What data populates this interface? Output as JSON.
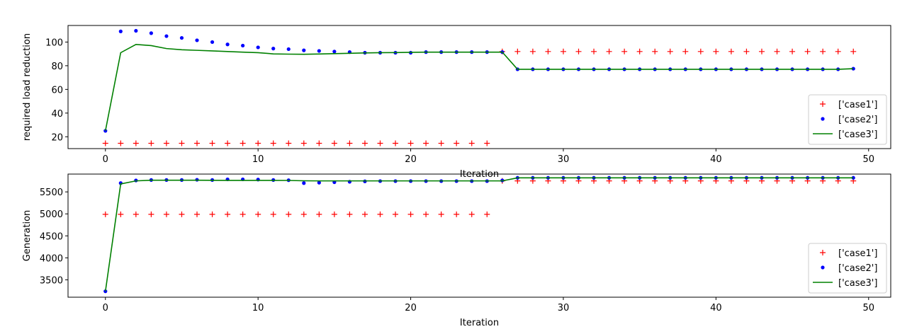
{
  "chart_data": [
    {
      "type": "line",
      "xlabel": "Iteration",
      "ylabel": "required load reduction",
      "xlim": [
        -2.45,
        51.45
      ],
      "ylim": [
        10,
        114
      ],
      "xticks": [
        0,
        10,
        20,
        30,
        40,
        50
      ],
      "yticks": [
        20,
        40,
        60,
        80,
        100
      ],
      "grid": false,
      "legend_position": "lower-right",
      "series": [
        {
          "name": "['case1']",
          "style": "plus",
          "color": "#ff0000",
          "x": [
            0,
            1,
            2,
            3,
            4,
            5,
            6,
            7,
            8,
            9,
            10,
            11,
            12,
            13,
            14,
            15,
            16,
            17,
            18,
            19,
            20,
            21,
            22,
            23,
            24,
            25,
            26,
            27,
            28,
            29,
            30,
            31,
            32,
            33,
            34,
            35,
            36,
            37,
            38,
            39,
            40,
            41,
            42,
            43,
            44,
            45,
            46,
            47,
            48,
            49
          ],
          "y": [
            14.5,
            14.5,
            14.5,
            14.5,
            14.5,
            14.5,
            14.5,
            14.5,
            14.5,
            14.5,
            14.5,
            14.5,
            14.5,
            14.5,
            14.5,
            14.5,
            14.5,
            14.5,
            14.5,
            14.5,
            14.5,
            14.5,
            14.5,
            14.5,
            14.5,
            14.5,
            92,
            92,
            92,
            92,
            92,
            92,
            92,
            92,
            92,
            92,
            92,
            92,
            92,
            92,
            92,
            92,
            92,
            92,
            92,
            92,
            92,
            92,
            92,
            92
          ]
        },
        {
          "name": "['case2']",
          "style": "dot",
          "color": "#0000ff",
          "x": [
            0,
            1,
            2,
            3,
            4,
            5,
            6,
            7,
            8,
            9,
            10,
            11,
            12,
            13,
            14,
            15,
            16,
            17,
            18,
            19,
            20,
            21,
            22,
            23,
            24,
            25,
            26,
            27,
            28,
            29,
            30,
            31,
            32,
            33,
            34,
            35,
            36,
            37,
            38,
            39,
            40,
            41,
            42,
            43,
            44,
            45,
            46,
            47,
            48,
            49
          ],
          "y": [
            25,
            109,
            109.5,
            107.5,
            105,
            103.5,
            101.5,
            100,
            98,
            97,
            95.5,
            94.5,
            94,
            93,
            92.5,
            92,
            91.5,
            91,
            91,
            91,
            91,
            91.5,
            91.5,
            91.5,
            91.5,
            91.5,
            91.5,
            77,
            77,
            77,
            77,
            77,
            77,
            77,
            77,
            77,
            77,
            77,
            77,
            77,
            77,
            77,
            77,
            77,
            77,
            77,
            77,
            77,
            77,
            77.5
          ]
        },
        {
          "name": "['case3']",
          "style": "line",
          "color": "#008000",
          "x": [
            0,
            1,
            2,
            3,
            4,
            5,
            6,
            7,
            8,
            9,
            10,
            11,
            12,
            13,
            14,
            15,
            16,
            17,
            18,
            19,
            20,
            21,
            22,
            23,
            24,
            25,
            26,
            27,
            28,
            29,
            30,
            31,
            32,
            33,
            34,
            35,
            36,
            37,
            38,
            39,
            40,
            41,
            42,
            43,
            44,
            45,
            46,
            47,
            48,
            49
          ],
          "y": [
            25,
            91,
            98,
            97,
            94.5,
            93.5,
            93,
            92.5,
            92,
            91.5,
            91,
            90,
            89.8,
            89.7,
            89.9,
            90.2,
            90.5,
            90.8,
            91,
            91.1,
            91.3,
            91.5,
            91.5,
            91.5,
            91.5,
            91.5,
            91.5,
            77,
            77,
            77,
            77,
            77,
            77,
            77,
            77,
            77,
            77,
            77,
            77,
            77,
            77,
            77,
            77,
            77,
            77,
            77,
            77,
            77,
            77,
            77.5
          ]
        }
      ]
    },
    {
      "type": "line",
      "xlabel": "Iteration",
      "ylabel": "Generation",
      "xlim": [
        -2.45,
        51.45
      ],
      "ylim": [
        3105,
        5905
      ],
      "xticks": [
        0,
        10,
        20,
        30,
        40,
        50
      ],
      "yticks": [
        3500,
        4000,
        4500,
        5000,
        5500
      ],
      "grid": false,
      "legend_position": "lower-right",
      "series": [
        {
          "name": "['case1']",
          "style": "plus",
          "color": "#ff0000",
          "x": [
            0,
            1,
            2,
            3,
            4,
            5,
            6,
            7,
            8,
            9,
            10,
            11,
            12,
            13,
            14,
            15,
            16,
            17,
            18,
            19,
            20,
            21,
            22,
            23,
            24,
            25,
            26,
            27,
            28,
            29,
            30,
            31,
            32,
            33,
            34,
            35,
            36,
            37,
            38,
            39,
            40,
            41,
            42,
            43,
            44,
            45,
            46,
            47,
            48,
            49
          ],
          "y": [
            4990,
            4990,
            4990,
            4990,
            4990,
            4990,
            4990,
            4990,
            4990,
            4990,
            4990,
            4990,
            4990,
            4990,
            4990,
            4990,
            4990,
            4990,
            4990,
            4990,
            4990,
            4990,
            4990,
            4990,
            4990,
            4990,
            5750,
            5750,
            5750,
            5750,
            5750,
            5750,
            5750,
            5750,
            5750,
            5750,
            5750,
            5750,
            5750,
            5750,
            5750,
            5750,
            5750,
            5750,
            5750,
            5750,
            5750,
            5750,
            5750,
            5750
          ]
        },
        {
          "name": "['case2']",
          "style": "dot",
          "color": "#0000ff",
          "x": [
            0,
            1,
            2,
            3,
            4,
            5,
            6,
            7,
            8,
            9,
            10,
            11,
            12,
            13,
            14,
            15,
            16,
            17,
            18,
            19,
            20,
            21,
            22,
            23,
            24,
            25,
            26,
            27,
            28,
            29,
            30,
            31,
            32,
            33,
            34,
            35,
            36,
            37,
            38,
            39,
            40,
            41,
            42,
            43,
            44,
            45,
            46,
            47,
            48,
            49
          ],
          "y": [
            3240,
            5700,
            5760,
            5770,
            5770,
            5770,
            5775,
            5770,
            5785,
            5785,
            5780,
            5770,
            5765,
            5700,
            5710,
            5720,
            5730,
            5740,
            5745,
            5745,
            5745,
            5745,
            5745,
            5745,
            5745,
            5745,
            5760,
            5820,
            5820,
            5820,
            5820,
            5820,
            5820,
            5820,
            5820,
            5820,
            5820,
            5820,
            5820,
            5820,
            5820,
            5820,
            5820,
            5820,
            5820,
            5820,
            5820,
            5820,
            5820,
            5820
          ]
        },
        {
          "name": "['case3']",
          "style": "line",
          "color": "#008000",
          "x": [
            0,
            1,
            2,
            3,
            4,
            5,
            6,
            7,
            8,
            9,
            10,
            11,
            12,
            13,
            14,
            15,
            16,
            17,
            18,
            19,
            20,
            21,
            22,
            23,
            24,
            25,
            26,
            27,
            28,
            29,
            30,
            31,
            32,
            33,
            34,
            35,
            36,
            37,
            38,
            39,
            40,
            41,
            42,
            43,
            44,
            45,
            46,
            47,
            48,
            49
          ],
          "y": [
            3240,
            5680,
            5750,
            5765,
            5765,
            5765,
            5765,
            5763,
            5762,
            5762,
            5762,
            5762,
            5760,
            5752,
            5750,
            5750,
            5750,
            5750,
            5750,
            5750,
            5750,
            5750,
            5750,
            5750,
            5750,
            5750,
            5750,
            5820,
            5820,
            5820,
            5820,
            5820,
            5820,
            5820,
            5820,
            5820,
            5820,
            5820,
            5820,
            5820,
            5820,
            5820,
            5820,
            5820,
            5820,
            5820,
            5820,
            5820,
            5820,
            5820
          ]
        }
      ]
    }
  ]
}
